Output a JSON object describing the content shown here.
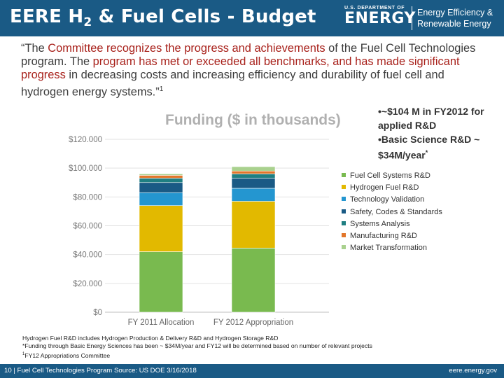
{
  "header": {
    "title_main": "EERE H",
    "title_sub": "2",
    "title_rest": " & Fuel Cells - Budget",
    "doe_small": "U.S. DEPARTMENT OF",
    "doe_big": "ENERGY",
    "eere_line1": "Energy Efficiency &",
    "eere_line2": "Renewable Energy"
  },
  "quote": {
    "p1": "“The ",
    "p2": "Committee recognizes the progress and achievements",
    "p3": " of the Fuel Cell Technologies program. The ",
    "p4": "program has met or exceeded all benchmarks, and has made significant progress",
    "p5": " in decreasing costs and increasing efficiency and durability of fuel cell and hydrogen energy systems.”",
    "p6": "1"
  },
  "bullets": {
    "b1": "•~$104 M in FY2012 for applied R&D",
    "b2": "•Basic Science R&D ~ $34M/year",
    "b2_sup": "*"
  },
  "legend_items": [
    "Fuel Cell Systems R&D",
    "Hydrogen Fuel R&D",
    "Technology Validation",
    "Safety, Codes & Standards",
    "Systems Analysis",
    "Manufacturing R&D",
    "Market Transformation"
  ],
  "colors": {
    "header_bg": "#1a5a85",
    "series": [
      "#79ba4f",
      "#e2b900",
      "#2496d0",
      "#1a5a85",
      "#1f7f82",
      "#e2762a",
      "#a9d18e"
    ]
  },
  "chart_data": {
    "type": "bar",
    "stacked": true,
    "title": "Funding ($ in thousands)",
    "categories": [
      "FY 2011 Allocation",
      "FY 2012 Appropriation"
    ],
    "y_ticks": [
      "$0",
      "$20.000",
      "$40.000",
      "$60.000",
      "$80.000",
      "$100.000",
      "$120.000"
    ],
    "ylim": [
      0,
      120000
    ],
    "grid": true,
    "legend_position": "right",
    "series": [
      {
        "name": "Fuel Cell Systems R&D",
        "values": [
          42000,
          44500
        ]
      },
      {
        "name": "Hydrogen Fuel R&D",
        "values": [
          32000,
          32500
        ]
      },
      {
        "name": "Technology Validation",
        "values": [
          9000,
          9000
        ]
      },
      {
        "name": "Safety, Codes & Standards",
        "values": [
          7000,
          7000
        ]
      },
      {
        "name": "Systems Analysis",
        "values": [
          3000,
          3000
        ]
      },
      {
        "name": "Manufacturing R&D",
        "values": [
          2000,
          2000
        ]
      },
      {
        "name": "Market Transformation",
        "values": [
          1000,
          3000
        ]
      }
    ]
  },
  "footnotes": {
    "line1": "Hydrogen Fuel R&D includes Hydrogen Production & Delivery R&D and Hydrogen Storage R&D",
    "line2": "*Funding through Basic Energy Sciences has been ~ $34M/year and FY12 will be determined based on number of relevant projects",
    "line3_sup": "1",
    "line3": "FY12 Appropriations Committee"
  },
  "footer": {
    "left": "10 | Fuel Cell Technologies Program Source: US DOE 3/16/2018",
    "right": "eere.energy.gov"
  }
}
